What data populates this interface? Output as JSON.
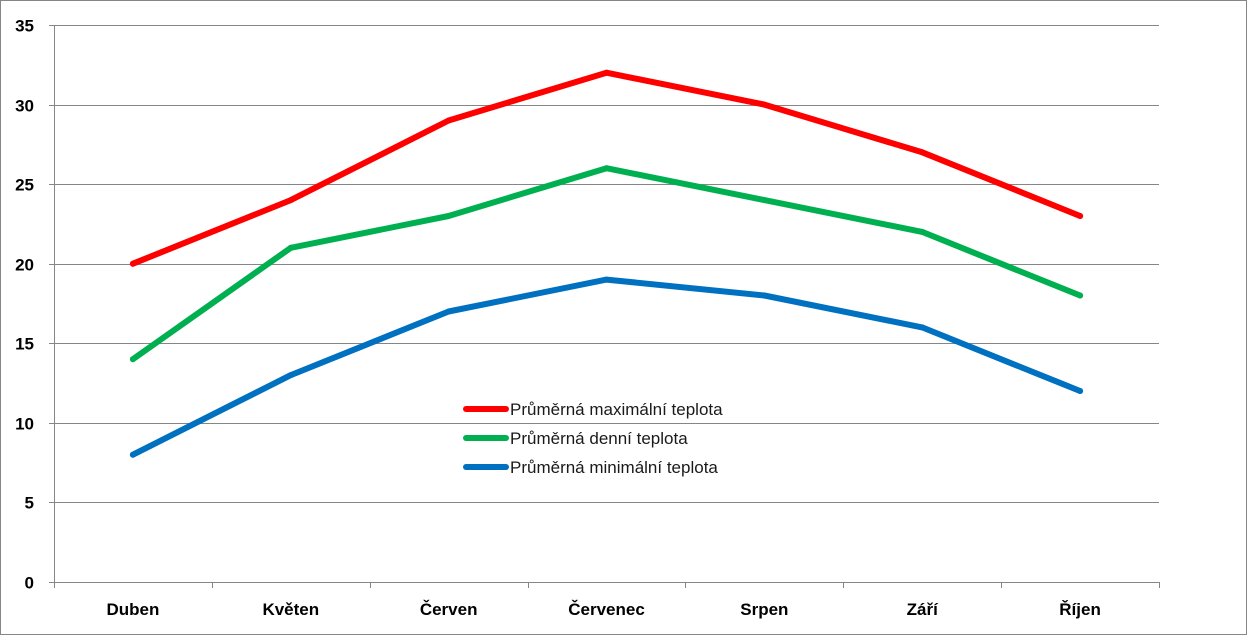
{
  "chart_data": {
    "type": "line",
    "title": "",
    "xlabel": "",
    "ylabel": "",
    "ylim": [
      0,
      35
    ],
    "yticks": [
      0,
      5,
      10,
      15,
      20,
      25,
      30,
      35
    ],
    "grid": true,
    "legend_position": "center",
    "categories": [
      "Duben",
      "Květen",
      "Červen",
      "Červenec",
      "Srpen",
      "Září",
      "Říjen"
    ],
    "series": [
      {
        "name": "Průměrná maximální teplota",
        "color": "#ff0000",
        "values": [
          20,
          24,
          29,
          32,
          30,
          27,
          23
        ]
      },
      {
        "name": "Průměrná denní teplota",
        "color": "#00b050",
        "values": [
          14,
          21,
          23,
          26,
          24,
          22,
          18
        ]
      },
      {
        "name": "Průměrná minimální teplota",
        "color": "#0070c0",
        "values": [
          8,
          13,
          17,
          19,
          18,
          16,
          12
        ]
      }
    ]
  }
}
